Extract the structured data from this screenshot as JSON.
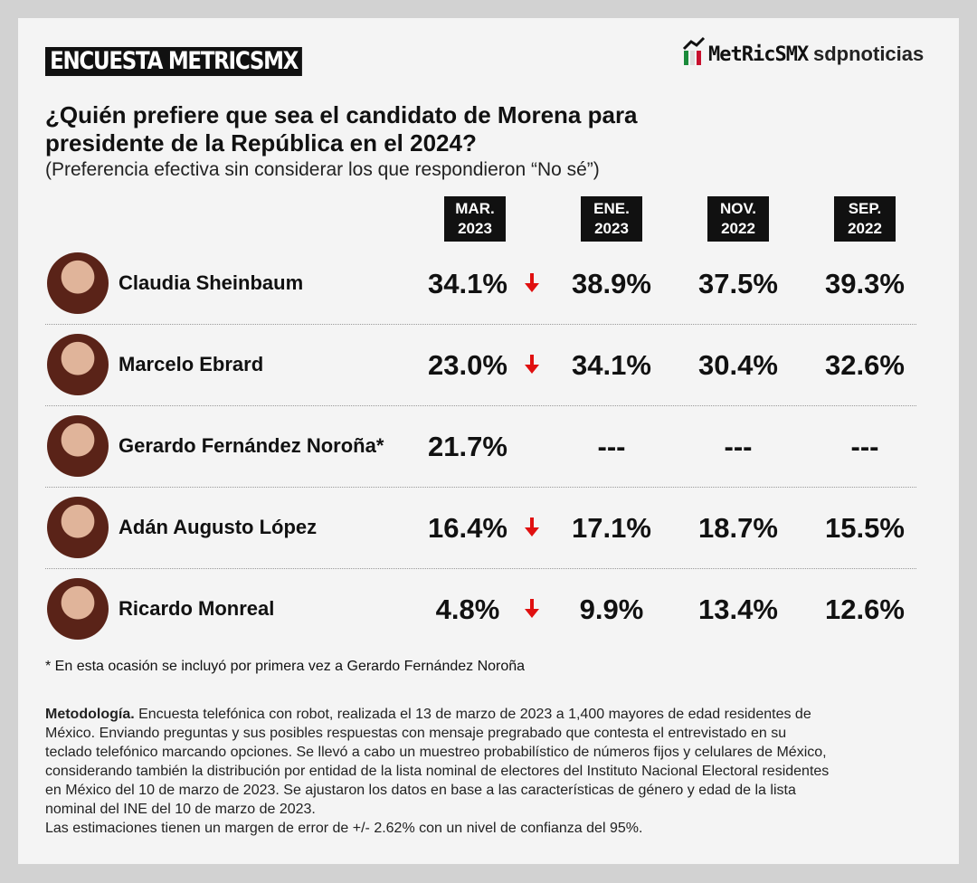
{
  "header": {
    "badge": "ENCUESTA METRICSMX",
    "logo": "MetRicSMX",
    "partner": "sdpnoticias"
  },
  "title_lines": [
    "¿Quién prefiere que sea el candidato de Morena para",
    "presidente de la República en el 2024?"
  ],
  "subtitle": "(Preferencia efectiva sin considerar los que respondieron “No sé”)",
  "table": {
    "columns": [
      {
        "month": "MAR.",
        "year": "2023"
      },
      {
        "month": "ENE.",
        "year": "2023"
      },
      {
        "month": "NOV.",
        "year": "2022"
      },
      {
        "month": "SEP.",
        "year": "2022"
      }
    ],
    "rows": [
      {
        "name": "Claudia Sheinbaum",
        "values": [
          "34.1%",
          "38.9%",
          "37.5%",
          "39.3%"
        ]
      },
      {
        "name": "Marcelo Ebrard",
        "values": [
          "23.0%",
          "34.1%",
          "30.4%",
          "32.6%"
        ]
      },
      {
        "name": "Gerardo Fernández Noroña*",
        "values": [
          "21.7%",
          "---",
          "---",
          "---"
        ]
      },
      {
        "name": "Adán Augusto López",
        "values": [
          "16.4%",
          "17.1%",
          "18.7%",
          "15.5%"
        ]
      },
      {
        "name": "Ricardo Monreal",
        "values": [
          "4.8%",
          "9.9%",
          "13.4%",
          "12.6%"
        ]
      }
    ]
  },
  "footnote": "* En esta ocasión se incluyó por primera vez a Gerardo Fernández Noroña",
  "methodology": {
    "label": "Metodología.",
    "lines": [
      "Encuesta telefónica con robot, realizada el 13 de marzo de 2023 a 1,400 mayores de edad residentes de",
      "México. Enviando preguntas y sus posibles respuestas con mensaje pregrabado que contesta el entrevistado en su",
      "teclado telefónico marcando opciones. Se llevó a cabo un muestreo probabilístico de números fijos y celulares de México,",
      "considerando también la distribución por entidad de la lista nominal de electores del Instituto Nacional Electoral residentes",
      "en México del 10 de marzo de 2023. Se ajustaron los datos en base a las características de género y edad de la lista",
      "nominal del INE del 10 de marzo de 2023.",
      "Las estimaciones tienen un margen de error de +/- 2.62% con un nivel de confianza del 95%."
    ]
  }
}
